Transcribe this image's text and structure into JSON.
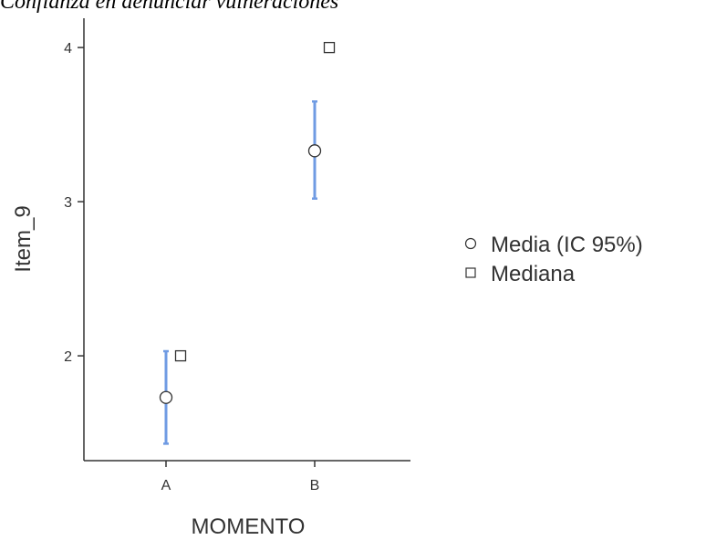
{
  "title": "Confianza en denunciar vulneraciones",
  "colors": {
    "errorbar": "#6f9be3",
    "marker_stroke": "#333333",
    "marker_fill": "#ffffff",
    "axis": "#333333"
  },
  "chart_data": {
    "type": "scatter",
    "xlabel": "MOMENTO",
    "ylabel": "Item_9",
    "categories": [
      "A",
      "B"
    ],
    "yticks": [
      2,
      3,
      4
    ],
    "ylim": [
      1.32,
      4.19
    ],
    "series": [
      {
        "name": "Media (IC 95%)",
        "marker": "circle",
        "values": [
          1.73,
          3.33
        ],
        "ci_lower": [
          1.43,
          3.02
        ],
        "ci_upper": [
          2.03,
          3.65
        ]
      },
      {
        "name": "Mediana",
        "marker": "square",
        "values": [
          2,
          4
        ]
      }
    ],
    "legend": "right",
    "grid": false
  }
}
